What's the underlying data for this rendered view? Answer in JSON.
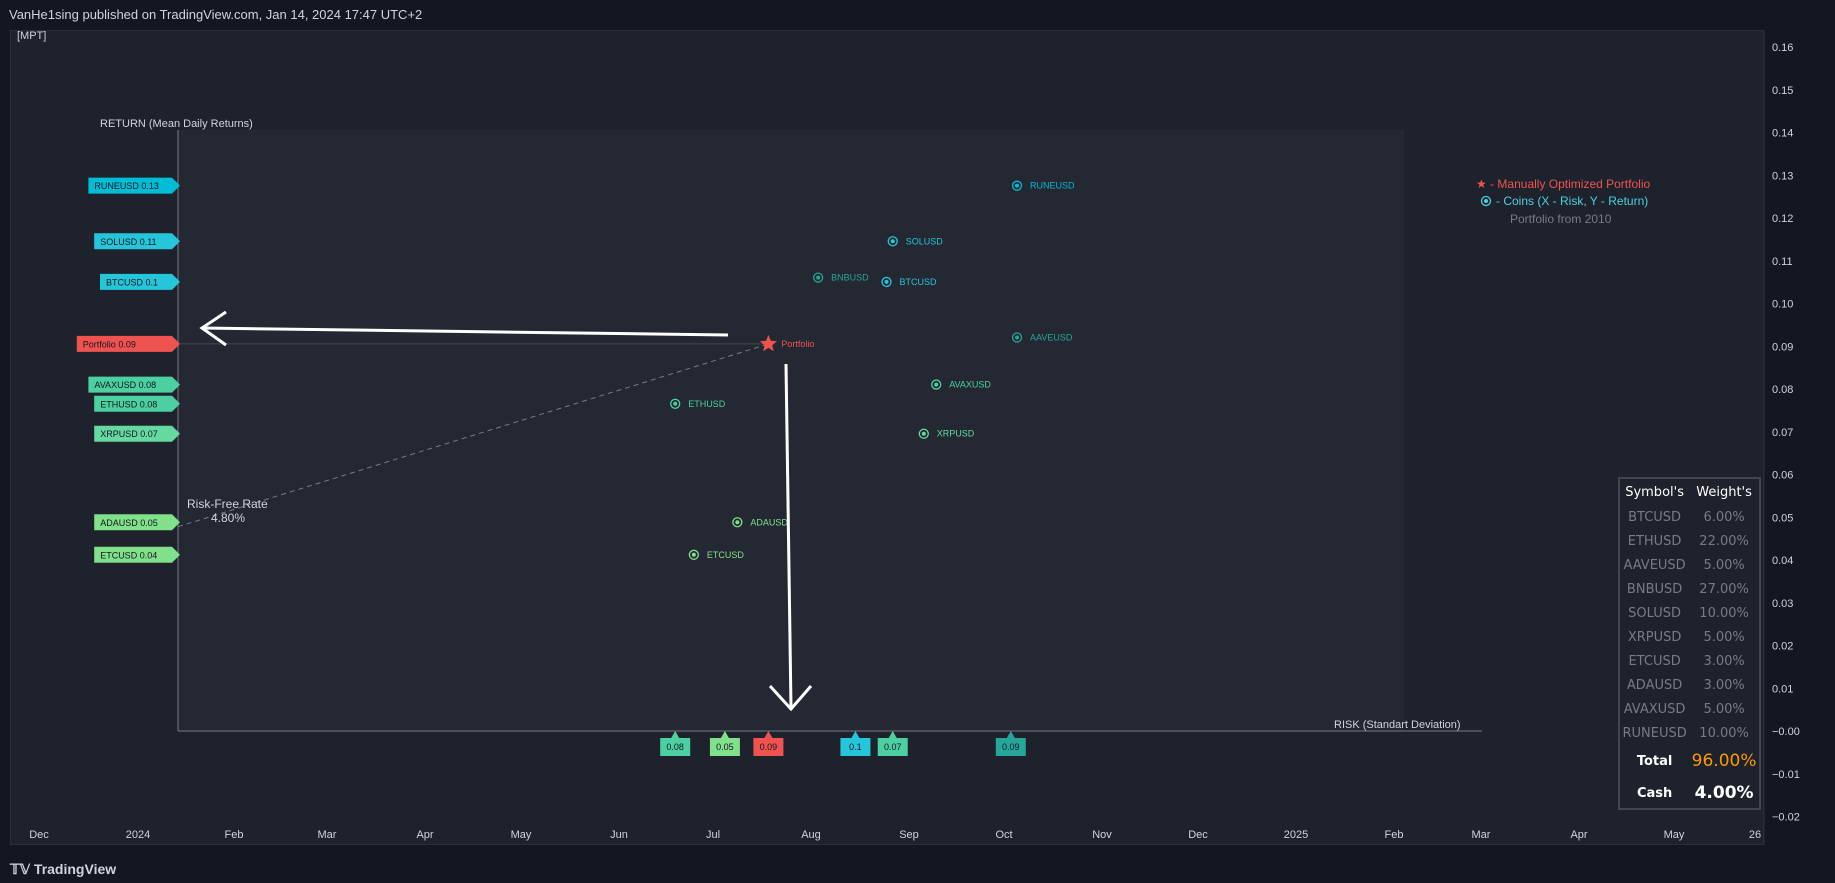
{
  "header": {
    "published_text": "VanHe1sing published on TradingView.com, Jan 14, 2024 17:47 UTC+2"
  },
  "indicator": {
    "name": "[MPT]"
  },
  "footer": {
    "brand": "TradingView"
  },
  "legend": {
    "portfolio_entry": "★ - Manually Optimized Portfolio",
    "coins_entry": "- Coins (X - Risk, Y - Return)",
    "subtitle": "Portfolio from 2010"
  },
  "chart_data": {
    "type": "scatter",
    "xlabel": "RISK (Standart Deviation)",
    "ylabel": "RETURN (Mean Daily Returns)",
    "price_axis_ticks": [
      "0.16",
      "0.15",
      "0.14",
      "0.13",
      "0.12",
      "0.11",
      "0.10",
      "0.09",
      "0.08",
      "0.07",
      "0.06",
      "0.05",
      "0.04",
      "0.03",
      "0.02",
      "0.01",
      "−0.00",
      "−0.01",
      "−0.02"
    ],
    "time_axis_ticks": [
      "Dec",
      "2024",
      "Feb",
      "Mar",
      "Apr",
      "May",
      "Jun",
      "Jul",
      "Aug",
      "Sep",
      "Oct",
      "Nov",
      "Dec",
      "2025",
      "Feb",
      "Mar",
      "Apr",
      "May",
      "26"
    ],
    "risk_free": {
      "label": "Risk-Free Rate",
      "value": "4.80%"
    },
    "points": [
      {
        "name": "RUNEUSD",
        "risk": 0.135,
        "ret": 0.1275,
        "y_label": "RUNEUSD 0.13",
        "color": "#00bcd4"
      },
      {
        "name": "SOLUSD",
        "risk": 0.115,
        "ret": 0.1145,
        "y_label": "SOLUSD 0.11",
        "color": "#26c6da"
      },
      {
        "name": "BNBUSD",
        "risk": 0.103,
        "ret": 0.106,
        "y_label": "",
        "color": "#26a69a"
      },
      {
        "name": "BTCUSD",
        "risk": 0.114,
        "ret": 0.105,
        "y_label": "BTCUSD 0.1",
        "color": "#26c6da"
      },
      {
        "name": "AAVEUSD",
        "risk": 0.135,
        "ret": 0.092,
        "y_label": "",
        "color": "#26a69a"
      },
      {
        "name": "AVAXUSD",
        "risk": 0.122,
        "ret": 0.081,
        "y_label": "AVAXUSD 0.08",
        "color": "#4dd0a1"
      },
      {
        "name": "ETHUSD",
        "risk": 0.08,
        "ret": 0.0765,
        "y_label": "ETHUSD 0.08",
        "color": "#4dd0a1"
      },
      {
        "name": "XRPUSD",
        "risk": 0.12,
        "ret": 0.0695,
        "y_label": "XRPUSD 0.07",
        "color": "#66d9a0"
      },
      {
        "name": "ADAUSD",
        "risk": 0.09,
        "ret": 0.0488,
        "y_label": "ADAUSD 0.05",
        "color": "#81e08a"
      },
      {
        "name": "ETCUSD",
        "risk": 0.083,
        "ret": 0.0412,
        "y_label": "ETCUSD 0.04",
        "color": "#81e08a"
      }
    ],
    "portfolio": {
      "name": "Portfolio",
      "risk": 0.095,
      "ret": 0.0905,
      "y_label": "Portfolio 0.09",
      "color": "#ef5350"
    },
    "x_axis_tags": [
      {
        "text": "0.08",
        "risk": 0.08,
        "color": "#4dd0a1"
      },
      {
        "text": "0.05",
        "risk": 0.088,
        "color": "#81e08a"
      },
      {
        "text": "0.09",
        "risk": 0.095,
        "color": "#ef5350"
      },
      {
        "text": "0.1",
        "risk": 0.109,
        "color": "#26c6da"
      },
      {
        "text": "0.07",
        "risk": 0.115,
        "color": "#4dd0a1"
      },
      {
        "text": "0.09",
        "risk": 0.134,
        "color": "#26a69a"
      }
    ]
  },
  "weights": {
    "header_symbol": "Symbol's",
    "header_weight": "Weight's",
    "rows": [
      {
        "symbol": "BTCUSD",
        "weight": "6.00%"
      },
      {
        "symbol": "ETHUSD",
        "weight": "22.00%"
      },
      {
        "symbol": "AAVEUSD",
        "weight": "5.00%"
      },
      {
        "symbol": "BNBUSD",
        "weight": "27.00%"
      },
      {
        "symbol": "SOLUSD",
        "weight": "10.00%"
      },
      {
        "symbol": "XRPUSD",
        "weight": "5.00%"
      },
      {
        "symbol": "ETCUSD",
        "weight": "3.00%"
      },
      {
        "symbol": "ADAUSD",
        "weight": "3.00%"
      },
      {
        "symbol": "AVAXUSD",
        "weight": "5.00%"
      },
      {
        "symbol": "RUNEUSD",
        "weight": "10.00%"
      }
    ],
    "total_label": "Total",
    "total_value": "96.00%",
    "cash_label": "Cash",
    "cash_value": "4.00%"
  }
}
